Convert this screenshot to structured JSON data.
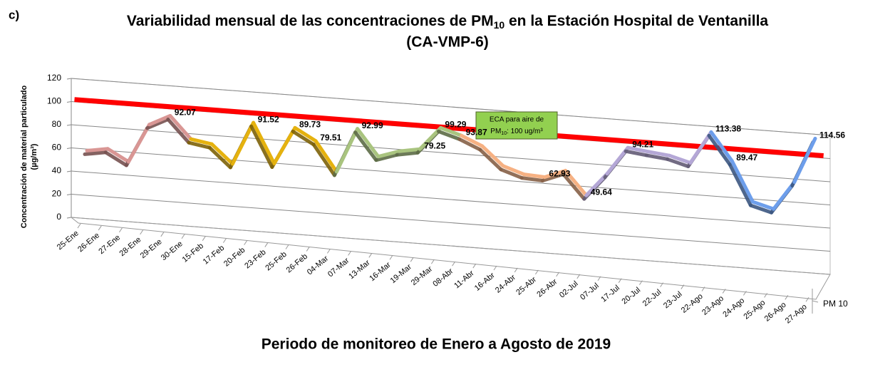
{
  "chart_data": {
    "type": "line3d",
    "panel_label": "c)",
    "title_parts": [
      "Variabilidad mensual de las concentraciones de PM",
      "10",
      " en la Estación Hospital de Ventanilla"
    ],
    "title_line2": "(CA-VMP-6)",
    "y_label_lines": [
      "Concentración de material particulado",
      "(µg/m³)"
    ],
    "x_label": "Periodo de monitoreo de Enero a Agosto de 2019",
    "categories": [
      "25-Ene",
      "26-Ene",
      "27-Ene",
      "28-Ene",
      "29-Ene",
      "30-Ene",
      "15-Feb",
      "17-Feb",
      "20-Feb",
      "23-Feb",
      "25-Feb",
      "26-Feb",
      "04-Mar",
      "07-Mar",
      "13-Mar",
      "16-Mar",
      "19-Mar",
      "29-Mar",
      "08-Abr",
      "11-Abr",
      "16-Abr",
      "24-Abr",
      "25-Abr",
      "26-Abr",
      "02-Jul",
      "07-Jul",
      "17-Jul",
      "20-Jul",
      "22-Jul",
      "23-Jul",
      "22-Ago",
      "23-Ago",
      "24-Ago",
      "25-Ago",
      "26-Ago",
      "27-Ago"
    ],
    "series": [
      {
        "name": "PM 10",
        "values": [
          56,
          59,
          49,
          83,
          92.07,
          73,
          70,
          54,
          91.52,
          57,
          89.73,
          79.51,
          54,
          92.99,
          70,
          76,
          79.25,
          99.29,
          93.87,
          86,
          70,
          64,
          62.93,
          70,
          49.64,
          70,
          94.21,
          92,
          90,
          85,
          113.38,
          89.47,
          55,
          50,
          75,
          114.56
        ],
        "value_labels": [
          null,
          null,
          null,
          null,
          "92.07",
          null,
          null,
          null,
          "91.52",
          null,
          "89.73",
          "79.51",
          null,
          "92.99",
          null,
          null,
          "79.25",
          "99.29",
          "93.87",
          null,
          null,
          null,
          "62.93",
          null,
          "49.64",
          null,
          "94.21",
          null,
          null,
          null,
          "113.38",
          "89.47",
          null,
          null,
          null,
          "114.56"
        ],
        "colors": [
          "#d99694",
          "#d99694",
          "#d99694",
          "#d99694",
          "#d99694",
          "#e5b20f",
          "#e5b20f",
          "#e5b20f",
          "#e5b20f",
          "#e5b20f",
          "#e5b20f",
          "#e5b20f",
          "#a9c47f",
          "#a9c47f",
          "#a9c47f",
          "#a9c47f",
          "#a9c47f",
          "#a9c47f",
          "#f6b183",
          "#f6b183",
          "#f6b183",
          "#f6b183",
          "#f6b183",
          "#f6b183",
          "#b4a7d6",
          "#b4a7d6",
          "#b4a7d6",
          "#b4a7d6",
          "#b4a7d6",
          "#b4a7d6",
          "#6d9eeb",
          "#6d9eeb",
          "#6d9eeb",
          "#6d9eeb",
          "#6d9eeb",
          "#6d9eeb"
        ]
      }
    ],
    "reference_line": {
      "value": 100,
      "color": "#ff0000"
    },
    "annotation_parts": [
      "ECA para aire de",
      "PM",
      "10",
      ": 100 ug/m³"
    ],
    "ylim": [
      0,
      120
    ],
    "yticks": [
      0,
      20,
      40,
      60,
      80,
      100,
      120
    ],
    "grid": true
  }
}
